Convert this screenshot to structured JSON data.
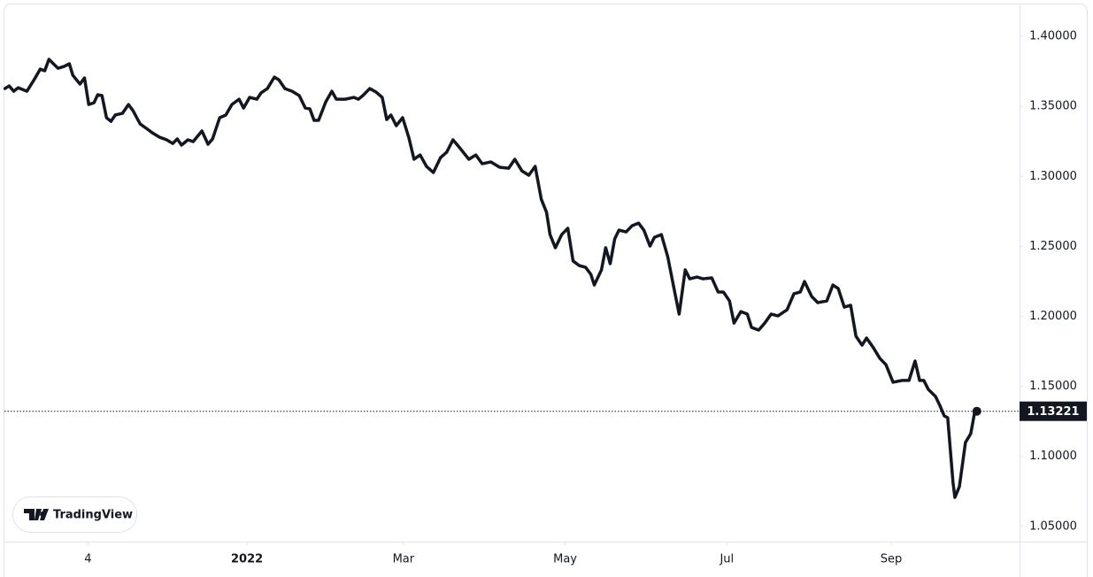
{
  "chart_data": {
    "type": "line",
    "watermark": "TradingView",
    "color": "#131722",
    "xlim": [
      -91.5,
      291.4
    ],
    "xticks": [
      {
        "value": -60,
        "label": "4"
      },
      {
        "value": 0,
        "label": "2022"
      },
      {
        "value": 59,
        "label": "Mar"
      },
      {
        "value": 120,
        "label": "May"
      },
      {
        "value": 181,
        "label": "Jul"
      },
      {
        "value": 243,
        "label": "Sep"
      }
    ],
    "ylim": [
      1.0391,
      1.4228
    ],
    "yticks": [
      {
        "value": 1.05,
        "label": "1.05000"
      },
      {
        "value": 1.1,
        "label": "1.10000"
      },
      {
        "value": 1.15,
        "label": "1.15000"
      },
      {
        "value": 1.2,
        "label": "1.20000"
      },
      {
        "value": 1.25,
        "label": "1.25000"
      },
      {
        "value": 1.3,
        "label": "1.30000"
      },
      {
        "value": 1.35,
        "label": "1.35000"
      },
      {
        "value": 1.4,
        "label": "1.40000"
      }
    ],
    "x": [
      -91.3,
      -89.7,
      -88,
      -86.3,
      -83,
      -80.3,
      -78,
      -76.3,
      -74.7,
      -73,
      -71.3,
      -69,
      -67,
      -65.7,
      -63,
      -61.3,
      -59.7,
      -57.7,
      -56.3,
      -54.7,
      -53,
      -51.3,
      -49.7,
      -47,
      -44.7,
      -43,
      -40.3,
      -38,
      -35.7,
      -33,
      -30.3,
      -28,
      -26.3,
      -24.7,
      -22.3,
      -20.3,
      -17,
      -14.7,
      -13,
      -10.3,
      -8,
      -5.7,
      -3,
      -1.3,
      1,
      3.7,
      5.3,
      7.7,
      10.3,
      12,
      14.3,
      17,
      19.7,
      22,
      23.7,
      25.3,
      27,
      29.7,
      32,
      33.7,
      37,
      40.3,
      42,
      43.7,
      46.3,
      48.7,
      51,
      52.7,
      54.3,
      56.3,
      58.7,
      61,
      63,
      65.3,
      67.7,
      70.3,
      73,
      75.3,
      77.7,
      79.7,
      83.7,
      86.3,
      88.7,
      92,
      95.3,
      98.7,
      101,
      103.7,
      106.3,
      108.7,
      111,
      113,
      114.3,
      116.3,
      118.7,
      121,
      123,
      125.3,
      127.7,
      129.7,
      131,
      133.7,
      135.3,
      137,
      138.7,
      140.3,
      143,
      145.3,
      147.7,
      149.7,
      152,
      153.7,
      156.3,
      158.7,
      161,
      163,
      165.3,
      167,
      169.7,
      172,
      175.3,
      177.7,
      179.7,
      182,
      183.7,
      186.3,
      188.7,
      190.3,
      193,
      195.3,
      197.7,
      200.3,
      203.7,
      206.3,
      208.7,
      210.3,
      213,
      215.3,
      218.7,
      221,
      223,
      225.3,
      227.7,
      229.7,
      232,
      233.7,
      236.3,
      238.7,
      241,
      243.7,
      247,
      249.7,
      252,
      253.7,
      255.3,
      257,
      259.7,
      261.3,
      263,
      264.3,
      266.3,
      267,
      268.7,
      271,
      273,
      274.7,
      275.3
    ],
    "values": [
      1.3627,
      1.3646,
      1.3608,
      1.3633,
      1.3608,
      1.369,
      1.3766,
      1.3754,
      1.3836,
      1.3804,
      1.3772,
      1.3785,
      1.3804,
      1.3722,
      1.3659,
      1.3703,
      1.3513,
      1.3526,
      1.3583,
      1.3577,
      1.3419,
      1.3393,
      1.3438,
      1.345,
      1.3513,
      1.3469,
      1.3374,
      1.3343,
      1.3311,
      1.328,
      1.3261,
      1.3235,
      1.3267,
      1.3223,
      1.3261,
      1.3248,
      1.3324,
      1.3229,
      1.3267,
      1.3419,
      1.3438,
      1.3513,
      1.3551,
      1.3488,
      1.3564,
      1.3551,
      1.3596,
      1.3627,
      1.3709,
      1.369,
      1.3627,
      1.3608,
      1.3577,
      1.3488,
      1.3482,
      1.34,
      1.34,
      1.3532,
      1.3608,
      1.3551,
      1.3551,
      1.3564,
      1.3551,
      1.3577,
      1.3627,
      1.3602,
      1.3564,
      1.3406,
      1.3438,
      1.3362,
      1.3419,
      1.328,
      1.3122,
      1.3153,
      1.3071,
      1.3027,
      1.3134,
      1.3172,
      1.3261,
      1.3216,
      1.3122,
      1.3153,
      1.309,
      1.3103,
      1.3065,
      1.3058,
      1.3122,
      1.3039,
      1.3008,
      1.3071,
      1.2837,
      1.2742,
      1.2584,
      1.249,
      1.2584,
      1.2629,
      1.2395,
      1.2363,
      1.235,
      1.23,
      1.2224,
      1.2332,
      1.249,
      1.2376,
      1.2553,
      1.2616,
      1.2603,
      1.2648,
      1.2666,
      1.2616,
      1.2502,
      1.2565,
      1.2584,
      1.2426,
      1.2205,
      1.2016,
      1.2332,
      1.2268,
      1.2281,
      1.2268,
      1.2275,
      1.2174,
      1.2174,
      1.211,
      1.1952,
      1.2034,
      1.2016,
      1.1921,
      1.1902,
      1.1952,
      1.2016,
      1.2003,
      1.2047,
      1.2161,
      1.2174,
      1.2249,
      1.2142,
      1.2098,
      1.211,
      1.2224,
      1.2199,
      1.2066,
      1.2079,
      1.1858,
      1.1794,
      1.1845,
      1.1775,
      1.17,
      1.1655,
      1.1529,
      1.1542,
      1.1542,
      1.1681,
      1.1542,
      1.1542,
      1.1478,
      1.1428,
      1.1365,
      1.1289,
      1.1276,
      1.0815,
      1.0707,
      1.0783,
      1.1099,
      1.1162,
      1.1339,
      1.13221
    ]
  }
}
